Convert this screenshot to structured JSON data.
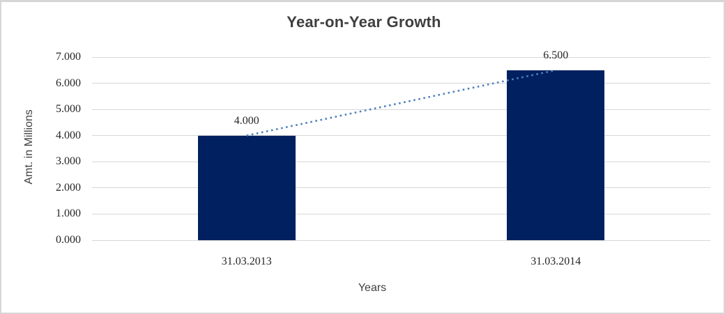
{
  "page": {
    "background": "#ffffff",
    "frame_border_color": "#d6d6d6"
  },
  "chart_data": {
    "type": "bar",
    "title": "Year-on-Year Growth",
    "categories": [
      "31.03.2013",
      "31.03.2014"
    ],
    "values": [
      4.0,
      6.5
    ],
    "data_labels": [
      "4.000",
      "6.500"
    ],
    "xlabel": "Years",
    "ylabel": "Amt. in Millions",
    "ylim": [
      0,
      7
    ],
    "ytick_step": 1,
    "ytick_labels": [
      "0.000",
      "1.000",
      "2.000",
      "3.000",
      "4.000",
      "5.000",
      "6.000",
      "7.000"
    ],
    "grid": true,
    "legend": "none",
    "bar_color": "#002060",
    "gridline_color": "#d7d7d7",
    "title_color": "#3f3f3f",
    "axis_title_color": "#404040",
    "tick_label_color": "#262626",
    "trendline": {
      "type": "linear",
      "style": "dotted",
      "color": "#4f81bd",
      "connects": "bar-tops"
    }
  }
}
